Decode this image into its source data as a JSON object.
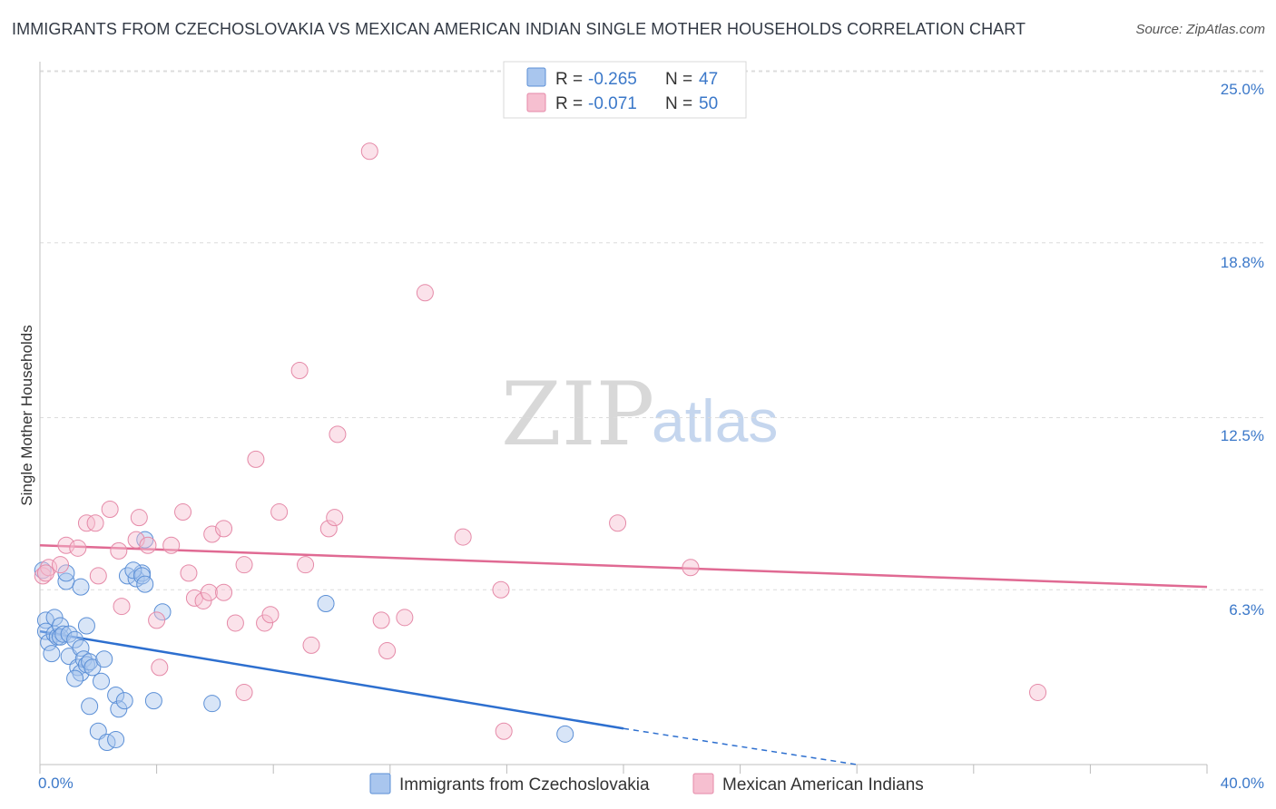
{
  "title": "IMMIGRANTS FROM CZECHOSLOVAKIA VS MEXICAN AMERICAN INDIAN SINGLE MOTHER HOUSEHOLDS CORRELATION CHART",
  "source": "Source: ZipAtlas.com",
  "watermark": {
    "zip": "ZIP",
    "atlas": "atlas"
  },
  "legend": {
    "r_label": "R =",
    "n_label": "N =",
    "series1": {
      "r": "-0.265",
      "n": "47"
    },
    "series2": {
      "r": "-0.071",
      "n": "50"
    }
  },
  "colors": {
    "blue_fill": "#a9c6ee",
    "blue_stroke": "#5b8fd6",
    "blue_line": "#2d6fcf",
    "pink_fill": "#f6bfd0",
    "pink_stroke": "#e58aa8",
    "pink_line": "#e06a93",
    "grid": "#dcdcdc",
    "tick_text": "#3b78c9"
  },
  "chart_data": {
    "type": "scatter",
    "title": "IMMIGRANTS FROM CZECHOSLOVAKIA VS MEXICAN AMERICAN INDIAN SINGLE MOTHER HOUSEHOLDS CORRELATION CHART",
    "xlabel": "",
    "ylabel": "Single Mother Households",
    "xlim": [
      0,
      40
    ],
    "ylim": [
      0,
      25
    ],
    "x_tick_labels": [
      "0.0%",
      "40.0%"
    ],
    "y_ticks": [
      6.3,
      12.5,
      18.8,
      25.0
    ],
    "y_tick_labels": [
      "6.3%",
      "12.5%",
      "18.8%",
      "25.0%"
    ],
    "grid": true,
    "series": [
      {
        "name": "Immigrants from Czechoslovakia",
        "color": "blue",
        "r": -0.265,
        "n": 47,
        "trend": {
          "x1": 0,
          "y1": 4.8,
          "x2": 20,
          "y2": 1.3,
          "dashed_to_x": 28,
          "dashed_to_y": 0.0
        },
        "points": [
          [
            0.1,
            7.0
          ],
          [
            0.2,
            5.2
          ],
          [
            0.2,
            4.8
          ],
          [
            0.3,
            4.4
          ],
          [
            0.4,
            4.0
          ],
          [
            0.5,
            5.3
          ],
          [
            0.5,
            4.7
          ],
          [
            0.6,
            4.6
          ],
          [
            0.7,
            5.0
          ],
          [
            0.7,
            4.6
          ],
          [
            0.8,
            4.7
          ],
          [
            0.9,
            6.6
          ],
          [
            1.0,
            4.7
          ],
          [
            0.9,
            6.9
          ],
          [
            1.4,
            6.4
          ],
          [
            1.6,
            5.0
          ],
          [
            1.0,
            3.9
          ],
          [
            1.2,
            4.5
          ],
          [
            1.3,
            3.5
          ],
          [
            1.4,
            3.3
          ],
          [
            1.2,
            3.1
          ],
          [
            1.4,
            4.2
          ],
          [
            1.5,
            3.8
          ],
          [
            1.6,
            3.6
          ],
          [
            1.7,
            3.7
          ],
          [
            1.8,
            3.5
          ],
          [
            1.7,
            2.1
          ],
          [
            2.1,
            3.0
          ],
          [
            2.0,
            1.2
          ],
          [
            2.2,
            3.8
          ],
          [
            2.3,
            0.8
          ],
          [
            2.6,
            2.5
          ],
          [
            2.7,
            2.0
          ],
          [
            2.9,
            2.3
          ],
          [
            2.6,
            0.9
          ],
          [
            3.0,
            6.8
          ],
          [
            3.3,
            6.7
          ],
          [
            3.5,
            6.9
          ],
          [
            3.2,
            7.0
          ],
          [
            3.6,
            8.1
          ],
          [
            3.5,
            6.8
          ],
          [
            3.6,
            6.5
          ],
          [
            3.9,
            2.3
          ],
          [
            4.2,
            5.5
          ],
          [
            5.9,
            2.2
          ],
          [
            9.8,
            5.8
          ],
          [
            18.0,
            1.1
          ]
        ]
      },
      {
        "name": "Mexican American Indians",
        "color": "pink",
        "r": -0.071,
        "n": 50,
        "trend": {
          "x1": 0,
          "y1": 7.9,
          "x2": 40,
          "y2": 6.4
        },
        "points": [
          [
            0.1,
            6.8
          ],
          [
            0.3,
            7.1
          ],
          [
            0.7,
            7.2
          ],
          [
            0.9,
            7.9
          ],
          [
            1.3,
            7.8
          ],
          [
            1.6,
            8.7
          ],
          [
            1.9,
            8.7
          ],
          [
            2.0,
            6.8
          ],
          [
            2.4,
            9.2
          ],
          [
            2.7,
            7.7
          ],
          [
            2.8,
            5.7
          ],
          [
            3.3,
            8.1
          ],
          [
            3.4,
            8.9
          ],
          [
            3.7,
            7.9
          ],
          [
            4.0,
            5.2
          ],
          [
            4.1,
            3.5
          ],
          [
            4.5,
            7.9
          ],
          [
            4.9,
            9.1
          ],
          [
            5.1,
            6.9
          ],
          [
            5.3,
            6.0
          ],
          [
            5.6,
            5.9
          ],
          [
            5.8,
            6.2
          ],
          [
            5.9,
            8.3
          ],
          [
            6.3,
            8.5
          ],
          [
            6.3,
            6.2
          ],
          [
            6.7,
            5.1
          ],
          [
            7.0,
            2.6
          ],
          [
            7.0,
            7.2
          ],
          [
            7.4,
            11.0
          ],
          [
            7.7,
            5.1
          ],
          [
            7.9,
            5.4
          ],
          [
            8.2,
            9.1
          ],
          [
            8.9,
            14.2
          ],
          [
            9.1,
            7.2
          ],
          [
            9.3,
            4.3
          ],
          [
            9.9,
            8.5
          ],
          [
            10.1,
            8.9
          ],
          [
            10.2,
            11.9
          ],
          [
            11.3,
            22.1
          ],
          [
            11.7,
            5.2
          ],
          [
            11.9,
            4.1
          ],
          [
            12.5,
            5.3
          ],
          [
            13.2,
            17.0
          ],
          [
            14.5,
            8.2
          ],
          [
            15.8,
            6.3
          ],
          [
            15.9,
            1.2
          ],
          [
            19.8,
            8.7
          ],
          [
            22.3,
            7.1
          ],
          [
            34.2,
            2.6
          ],
          [
            0.2,
            6.9
          ]
        ]
      }
    ]
  }
}
